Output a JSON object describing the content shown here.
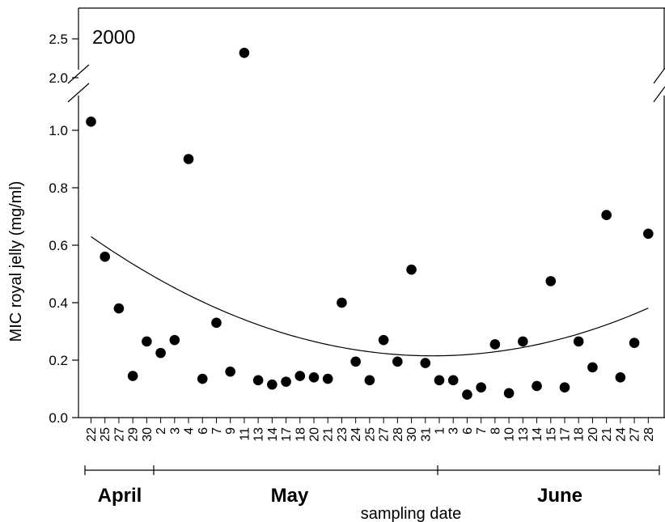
{
  "chart_data": {
    "type": "scatter",
    "panel_label": "2000",
    "xlabel": "sampling date",
    "ylabel": "MIC royal jelly (mg/ml)",
    "y_scale": "broken",
    "y_lower_range": [
      0.0,
      1.1
    ],
    "y_upper_range": [
      1.9,
      2.7
    ],
    "y_lower_ticks": [
      "0.0",
      "0.2",
      "0.4",
      "0.6",
      "0.8",
      "1.0"
    ],
    "y_upper_ticks": [
      "2.0",
      "2.5"
    ],
    "grid": false,
    "legend": "none",
    "months": [
      {
        "label": "April",
        "first_index": 0,
        "last_index": 4
      },
      {
        "label": "May",
        "first_index": 5,
        "last_index": 24
      },
      {
        "label": "June",
        "first_index": 25,
        "last_index": 40
      }
    ],
    "categories": [
      "22",
      "25",
      "27",
      "29",
      "30",
      "2",
      "3",
      "4",
      "6",
      "7",
      "9",
      "11",
      "13",
      "14",
      "17",
      "18",
      "20",
      "21",
      "23",
      "24",
      "25",
      "27",
      "28",
      "30",
      "31",
      "1",
      "3",
      "6",
      "7",
      "8",
      "10",
      "13",
      "14",
      "15",
      "17",
      "18",
      "20",
      "21",
      "24",
      "27",
      "28"
    ],
    "values": [
      1.03,
      0.56,
      0.38,
      0.145,
      0.265,
      0.225,
      0.27,
      0.9,
      0.135,
      0.33,
      0.16,
      2.32,
      0.13,
      0.115,
      0.125,
      0.145,
      0.14,
      0.135,
      0.4,
      0.195,
      0.13,
      0.27,
      0.195,
      0.515,
      0.19,
      0.13,
      0.13,
      0.08,
      0.105,
      0.255,
      0.085,
      0.265,
      0.11,
      0.475,
      0.105,
      0.265,
      0.175,
      0.705,
      0.14,
      0.26,
      0.64
    ],
    "fit_curve": {
      "type": "quadratic",
      "x_start": 0,
      "x_end": 40,
      "y_start": 0.63,
      "y_min": 0.215,
      "x_at_min": 24.5,
      "y_end": 0.375
    },
    "marker_color": "#000000",
    "line_color": "#000000"
  }
}
